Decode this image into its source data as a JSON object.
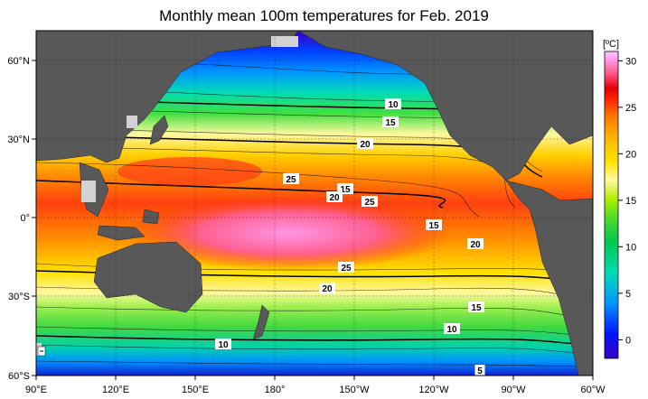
{
  "title": "Monthly mean 100m temperatures for Feb. 2019",
  "colorbar": {
    "unit": "[ºC]",
    "ticks": [
      0,
      5,
      10,
      15,
      20,
      25,
      30
    ],
    "range": [
      -2,
      31
    ]
  },
  "axes": {
    "lon_ticks": [
      "90°E",
      "120°E",
      "150°E",
      "180°",
      "150°W",
      "120°W",
      "90°W",
      "60°W"
    ],
    "lat_ticks": [
      "60°N",
      "30°N",
      "0°",
      "30°S",
      "60°S"
    ],
    "lon_range": [
      "90°E",
      "60°W"
    ],
    "lat_range": [
      "60°S",
      "70°N"
    ]
  },
  "contour_labels": [
    "10",
    "15",
    "20",
    "25",
    "15",
    "20",
    "25",
    "15",
    "20",
    "25",
    "20",
    "15",
    "10",
    "10",
    "5"
  ],
  "colors": {
    "land": "#585858",
    "no_data": "#d2d2d2",
    "scale": [
      "#3a00c8",
      "#0014ff",
      "#0096ff",
      "#00dcb4",
      "#00c850",
      "#50dc28",
      "#b4f000",
      "#fff8a0",
      "#ffe600",
      "#ffb400",
      "#ff7800",
      "#ff2800",
      "#e60000",
      "#ff5a8c",
      "#ff96e6",
      "#ffc8ff"
    ]
  }
}
